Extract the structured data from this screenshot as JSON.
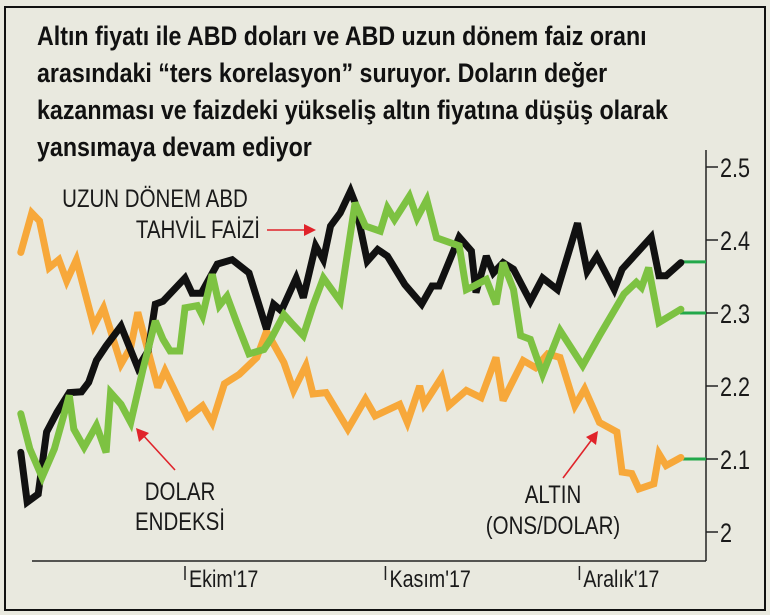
{
  "title_lines": [
    "Altın fiyatı ile ABD doları ve ABD uzun dönem faiz oranı",
    "arasındaki “ters korelasyon” suruyor. Doların değer",
    "kazanması ve faizdeki yükseliş altın fiyatına düşüş olarak",
    "yansımaya devam ediyor"
  ],
  "colors": {
    "background": "#e9e9df",
    "yield": "#111111",
    "dollar": "#7dc242",
    "gold": "#f7a83a",
    "arrow": "#e0232a",
    "marker": "#22a84a"
  },
  "chart_data": {
    "type": "line",
    "title": "Altın fiyatı ile ABD doları ve ABD uzun dönem faiz oranı arasındaki “ters korelasyon” suruyor. Doların değer kazanması ve faizdeki yükseliş altın fiyatına düşüş olarak yansımaya devam ediyor",
    "xlabel": "",
    "ylabel": "",
    "x_unit": "days since 1 Sep 2017 (approx.)",
    "xlim": [
      0,
      110
    ],
    "ylim": [
      1.95,
      2.52
    ],
    "y_axis_position": "right",
    "yticks": [
      "2",
      "2.1",
      "2.2",
      "2.3",
      "2.4",
      "2.5"
    ],
    "ytick_values": [
      2.0,
      2.1,
      2.2,
      2.3,
      2.4,
      2.5
    ],
    "xticks": [
      {
        "label": "Ekim'17",
        "x": 30
      },
      {
        "label": "Kasım'17",
        "x": 61
      },
      {
        "label": "Aralık'17",
        "x": 91
      }
    ],
    "grid": false,
    "end_markers": [
      2.37,
      2.3,
      2.1
    ],
    "series": [
      {
        "name": "UZUN DÖNEM ABD TAHVİL FAİZİ",
        "label_lines": [
          "UZUN DÖNEM ABD",
          "TAHVİL FAİZİ"
        ],
        "color": "#111111",
        "x": [
          4.6,
          5.6,
          7.3,
          8.6,
          10.2,
          12.1,
          14,
          15.1,
          16.3,
          17.8,
          20.1,
          22.7,
          24.3,
          25.4,
          26.6,
          30,
          31.1,
          32.5,
          35,
          37.3,
          39.9,
          42.6,
          43.7,
          44.9,
          47.2,
          48.3,
          50.2,
          51.4,
          52.5,
          54,
          55.6,
          56.3,
          58.2,
          59.8,
          61.3,
          64,
          66.6,
          68.2,
          69.3,
          72.4,
          74.3,
          75,
          76.6,
          77.7,
          79.2,
          80.8,
          83.4,
          85.3,
          87.6,
          90.7,
          92.2,
          93.7,
          96.4,
          97.6,
          102.1,
          103.3,
          104.4,
          106.7
        ],
        "y": [
          2.109,
          2.041,
          2.052,
          2.137,
          2.164,
          2.191,
          2.192,
          2.205,
          2.235,
          2.255,
          2.282,
          2.225,
          2.248,
          2.312,
          2.316,
          2.348,
          2.327,
          2.327,
          2.367,
          2.373,
          2.355,
          2.278,
          2.312,
          2.303,
          2.348,
          2.321,
          2.392,
          2.373,
          2.419,
          2.437,
          2.467,
          2.451,
          2.371,
          2.387,
          2.378,
          2.339,
          2.312,
          2.337,
          2.337,
          2.404,
          2.385,
          2.328,
          2.378,
          2.355,
          2.369,
          2.36,
          2.316,
          2.348,
          2.332,
          2.423,
          2.357,
          2.378,
          2.332,
          2.36,
          2.404,
          2.351,
          2.351,
          2.369
        ]
      },
      {
        "name": "DOLAR ENDEKSİ",
        "label_lines": [
          "DOLAR",
          "ENDEKSİ"
        ],
        "color": "#7dc242",
        "x": [
          4.6,
          6,
          7.9,
          9.8,
          12.1,
          12.8,
          14.4,
          16.3,
          17.8,
          18.5,
          20.1,
          21.6,
          23.5,
          25.4,
          26.6,
          27.7,
          29.2,
          30,
          31.9,
          32.7,
          34.2,
          35.3,
          36.5,
          38,
          39.9,
          42.2,
          43.4,
          45.3,
          46.4,
          48.3,
          49.8,
          51.4,
          54,
          56.3,
          57.9,
          60.2,
          61.3,
          62.4,
          64.7,
          65.9,
          67.4,
          68.9,
          72.4,
          73.5,
          74.7,
          76.6,
          78.1,
          79.2,
          80.8,
          81.9,
          83.4,
          85.3,
          88,
          91.5,
          94.1,
          97.9,
          99.8,
          100.6,
          101.7,
          103.3,
          106.7
        ],
        "y": [
          2.162,
          2.114,
          2.075,
          2.114,
          2.187,
          2.141,
          2.116,
          2.146,
          2.109,
          2.191,
          2.175,
          2.15,
          2.223,
          2.289,
          2.264,
          2.248,
          2.248,
          2.307,
          2.31,
          2.296,
          2.353,
          2.31,
          2.323,
          2.287,
          2.244,
          2.25,
          2.266,
          2.298,
          2.287,
          2.269,
          2.31,
          2.348,
          2.316,
          2.451,
          2.419,
          2.412,
          2.444,
          2.428,
          2.46,
          2.43,
          2.455,
          2.403,
          2.392,
          2.332,
          2.337,
          2.346,
          2.312,
          2.369,
          2.332,
          2.269,
          2.264,
          2.216,
          2.276,
          2.228,
          2.269,
          2.326,
          2.342,
          2.335,
          2.362,
          2.287,
          2.305
        ]
      },
      {
        "name": "ALTIN (ONS/DOLAR)",
        "label_lines": [
          "ALTIN",
          "(ONS/DOLAR)"
        ],
        "color": "#f7a83a",
        "x": [
          4.6,
          6.3,
          7.5,
          9,
          10.5,
          11.7,
          13.2,
          15.9,
          17.4,
          20.1,
          21.6,
          22.7,
          24.3,
          25.8,
          26.9,
          30.4,
          32.7,
          34.2,
          36.1,
          38.4,
          41.1,
          42.6,
          45.3,
          46.8,
          48.7,
          49.8,
          51.8,
          55.2,
          57.9,
          59.4,
          63.2,
          64.4,
          66.3,
          67,
          69.7,
          70.8,
          73.5,
          75.8,
          78.1,
          79.2,
          82.3,
          84.2,
          86.1,
          88,
          90.3,
          91.8,
          94.1,
          96.8,
          97.6,
          99.1,
          100.2,
          102.5,
          103.3,
          104.4,
          106.7
        ],
        "y": [
          2.383,
          2.437,
          2.426,
          2.362,
          2.373,
          2.344,
          2.373,
          2.282,
          2.307,
          2.23,
          2.253,
          2.301,
          2.248,
          2.198,
          2.221,
          2.157,
          2.173,
          2.15,
          2.203,
          2.216,
          2.239,
          2.275,
          2.232,
          2.194,
          2.228,
          2.189,
          2.191,
          2.141,
          2.182,
          2.159,
          2.175,
          2.15,
          2.2,
          2.175,
          2.212,
          2.173,
          2.194,
          2.184,
          2.239,
          2.18,
          2.235,
          2.225,
          2.244,
          2.239,
          2.173,
          2.196,
          2.15,
          2.137,
          2.082,
          2.08,
          2.059,
          2.066,
          2.107,
          2.091,
          2.102
        ]
      }
    ]
  }
}
